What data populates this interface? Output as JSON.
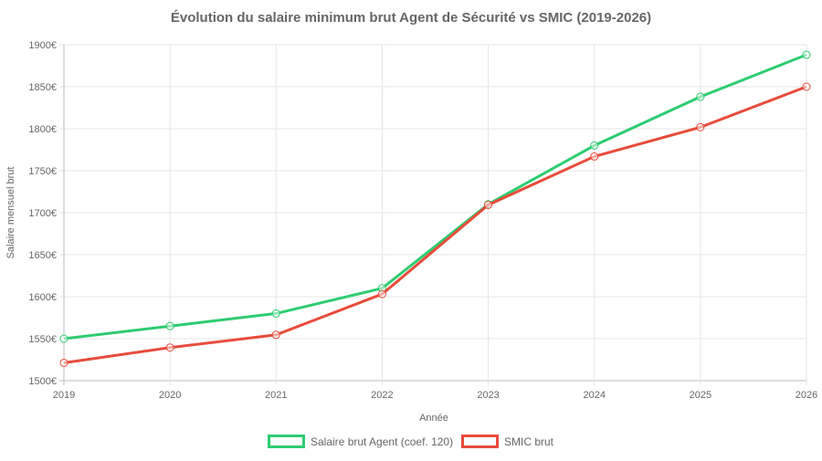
{
  "chart_data": {
    "type": "line",
    "title": "Évolution du salaire minimum brut Agent de Sécurité vs SMIC (2019-2026)",
    "xlabel": "Année",
    "ylabel": "Salaire mensuel brut",
    "categories": [
      "2019",
      "2020",
      "2021",
      "2022",
      "2023",
      "2024",
      "2025",
      "2026"
    ],
    "yticks": [
      "1500€",
      "1550€",
      "1600€",
      "1650€",
      "1700€",
      "1750€",
      "1800€",
      "1850€",
      "1900€"
    ],
    "ylim": [
      1500,
      1900
    ],
    "grid": true,
    "legend_position": "bottom",
    "series": [
      {
        "name": "Salaire brut Agent (coef. 120)",
        "color": "#2ecc71",
        "values": [
          1550,
          1565,
          1580,
          1610,
          1710,
          1780,
          1838,
          1888
        ]
      },
      {
        "name": "SMIC brut",
        "color": "#e74c3c",
        "values": [
          1521.22,
          1539.42,
          1554.58,
          1603.12,
          1709.28,
          1766.92,
          1801.8,
          1850
        ]
      }
    ]
  }
}
